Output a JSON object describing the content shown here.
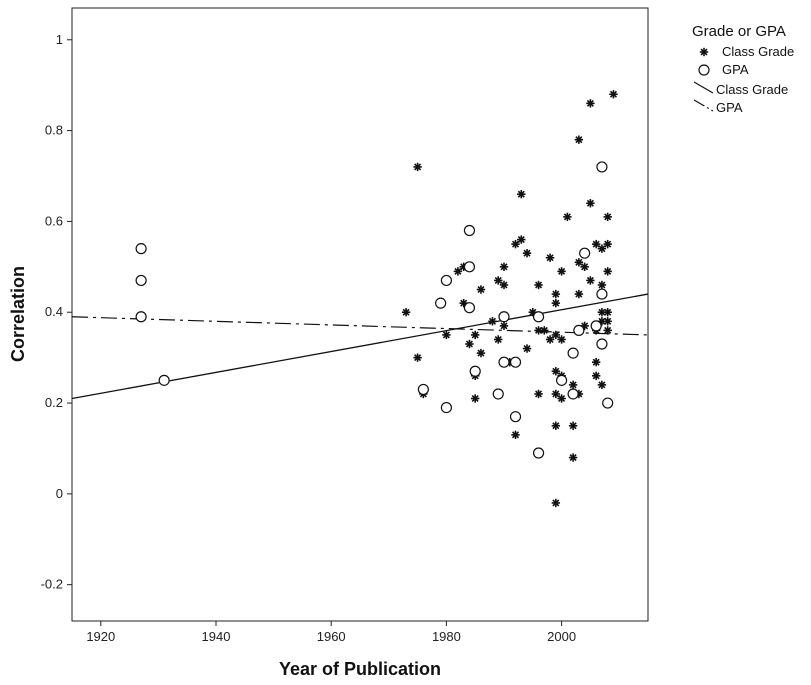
{
  "chart_data": {
    "type": "scatter",
    "xlabel": "Year of Publication",
    "ylabel": "Correlation",
    "xlim": [
      1915,
      2015
    ],
    "ylim": [
      -0.28,
      1.07
    ],
    "xticks": [
      1920,
      1940,
      1960,
      1980,
      2000
    ],
    "xtick_labels": [
      "1920",
      "1940",
      "1960",
      "1980",
      "2000"
    ],
    "yticks": [
      -0.2,
      0,
      0.2,
      0.4,
      0.6,
      0.8,
      1
    ],
    "ytick_labels": [
      "-0.2",
      "0",
      "0.2",
      "0.4",
      "0.6",
      "0.8",
      "1"
    ],
    "grid": false,
    "legend": {
      "title": "Grade or GPA",
      "position": "right",
      "entries": [
        {
          "label": "Class Grade",
          "marker": "asterisk"
        },
        {
          "label": "GPA",
          "marker": "open-circle"
        },
        {
          "label": "Class Grade",
          "marker": "solid-line"
        },
        {
          "label": "GPA",
          "marker": "dashed-line"
        }
      ]
    },
    "series": [
      {
        "name": "Class Grade",
        "marker": "asterisk",
        "points": [
          [
            1973,
            0.4
          ],
          [
            1975,
            0.72
          ],
          [
            1975,
            0.3
          ],
          [
            1976,
            0.22
          ],
          [
            1980,
            0.35
          ],
          [
            1982,
            0.49
          ],
          [
            1983,
            0.42
          ],
          [
            1983,
            0.5
          ],
          [
            1984,
            0.33
          ],
          [
            1985,
            0.26
          ],
          [
            1985,
            0.21
          ],
          [
            1985,
            0.35
          ],
          [
            1986,
            0.45
          ],
          [
            1986,
            0.31
          ],
          [
            1988,
            0.38
          ],
          [
            1989,
            0.47
          ],
          [
            1989,
            0.34
          ],
          [
            1990,
            0.5
          ],
          [
            1990,
            0.46
          ],
          [
            1990,
            0.37
          ],
          [
            1991,
            0.29
          ],
          [
            1992,
            0.55
          ],
          [
            1992,
            0.13
          ],
          [
            1993,
            0.56
          ],
          [
            1993,
            0.66
          ],
          [
            1994,
            0.53
          ],
          [
            1994,
            0.32
          ],
          [
            1995,
            0.4
          ],
          [
            1996,
            0.46
          ],
          [
            1996,
            0.36
          ],
          [
            1996,
            0.22
          ],
          [
            1997,
            0.36
          ],
          [
            1998,
            0.52
          ],
          [
            1998,
            0.34
          ],
          [
            1999,
            0.44
          ],
          [
            1999,
            0.42
          ],
          [
            1999,
            0.35
          ],
          [
            1999,
            0.27
          ],
          [
            1999,
            0.22
          ],
          [
            1999,
            0.15
          ],
          [
            1999,
            -0.02
          ],
          [
            2000,
            0.49
          ],
          [
            2000,
            0.34
          ],
          [
            2000,
            0.26
          ],
          [
            2000,
            0.21
          ],
          [
            2001,
            0.61
          ],
          [
            2002,
            0.24
          ],
          [
            2002,
            0.15
          ],
          [
            2002,
            0.08
          ],
          [
            2003,
            0.78
          ],
          [
            2003,
            0.51
          ],
          [
            2003,
            0.44
          ],
          [
            2003,
            0.22
          ],
          [
            2004,
            0.5
          ],
          [
            2004,
            0.37
          ],
          [
            2005,
            0.86
          ],
          [
            2005,
            0.64
          ],
          [
            2005,
            0.47
          ],
          [
            2006,
            0.55
          ],
          [
            2006,
            0.36
          ],
          [
            2006,
            0.29
          ],
          [
            2006,
            0.26
          ],
          [
            2007,
            0.54
          ],
          [
            2007,
            0.46
          ],
          [
            2007,
            0.4
          ],
          [
            2007,
            0.38
          ],
          [
            2007,
            0.24
          ],
          [
            2008,
            0.61
          ],
          [
            2008,
            0.55
          ],
          [
            2008,
            0.49
          ],
          [
            2008,
            0.4
          ],
          [
            2008,
            0.38
          ],
          [
            2008,
            0.36
          ],
          [
            2009,
            0.88
          ]
        ]
      },
      {
        "name": "GPA",
        "marker": "open-circle",
        "points": [
          [
            1927,
            0.54
          ],
          [
            1927,
            0.47
          ],
          [
            1927,
            0.39
          ],
          [
            1931,
            0.25
          ],
          [
            1976,
            0.23
          ],
          [
            1979,
            0.42
          ],
          [
            1980,
            0.47
          ],
          [
            1980,
            0.19
          ],
          [
            1984,
            0.58
          ],
          [
            1984,
            0.5
          ],
          [
            1984,
            0.41
          ],
          [
            1985,
            0.27
          ],
          [
            1989,
            0.22
          ],
          [
            1990,
            0.39
          ],
          [
            1990,
            0.29
          ],
          [
            1992,
            0.29
          ],
          [
            1992,
            0.17
          ],
          [
            1996,
            0.39
          ],
          [
            1996,
            0.09
          ],
          [
            2000,
            0.25
          ],
          [
            2002,
            0.31
          ],
          [
            2002,
            0.22
          ],
          [
            2003,
            0.36
          ],
          [
            2004,
            0.53
          ],
          [
            2006,
            0.37
          ],
          [
            2007,
            0.72
          ],
          [
            2007,
            0.44
          ],
          [
            2007,
            0.33
          ],
          [
            2008,
            0.2
          ]
        ]
      }
    ],
    "fit_lines": [
      {
        "name": "Class Grade",
        "style": "solid",
        "x": [
          1915,
          2015
        ],
        "y": [
          0.21,
          0.44
        ]
      },
      {
        "name": "GPA",
        "style": "dashed",
        "x": [
          1915,
          2015
        ],
        "y": [
          0.39,
          0.35
        ]
      }
    ]
  }
}
